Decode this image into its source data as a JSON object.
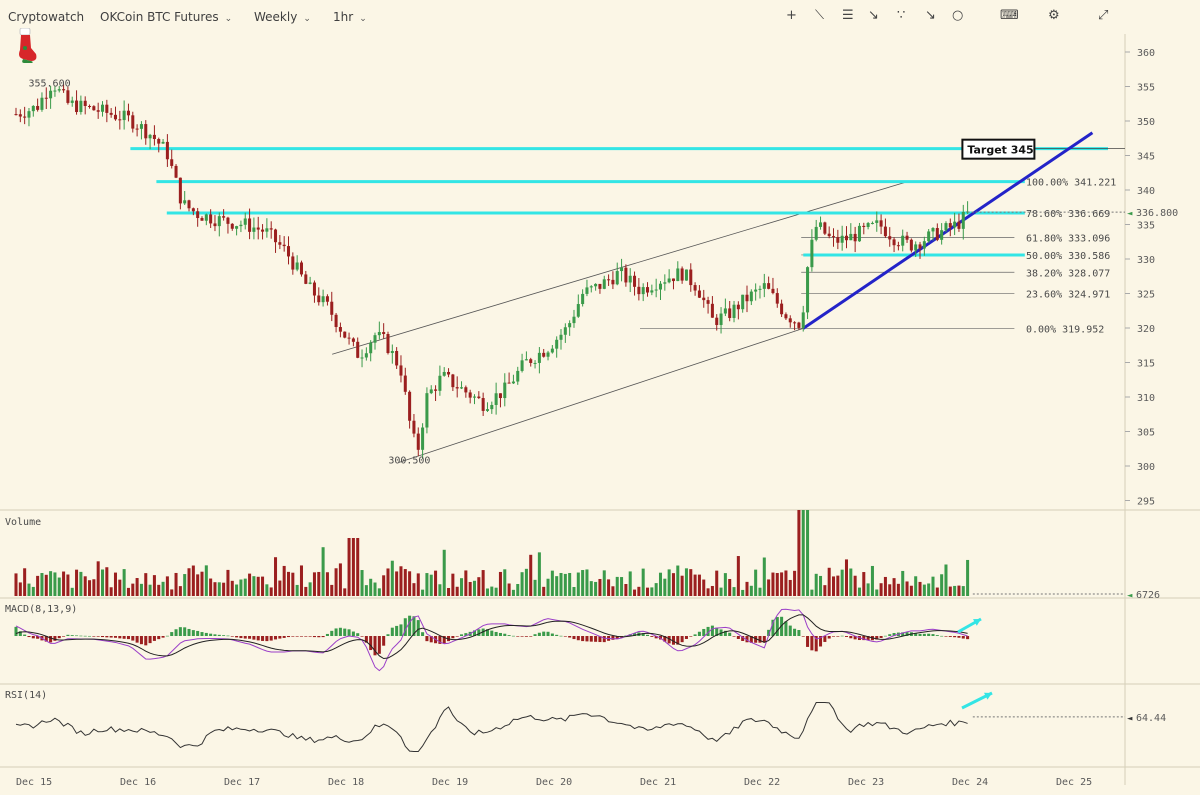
{
  "toolbar": {
    "brand": "Cryptowatch",
    "market": "OKCoin BTC Futures",
    "period": "Weekly",
    "interval": "1hr",
    "icons": [
      "plus-icon",
      "line-tool-icon",
      "hlines-icon",
      "fan-tool-icon",
      "fib-tool-icon",
      "arrow-tool-icon",
      "circle-tool-icon",
      "keyboard-icon",
      "gear-icon",
      "expand-icon"
    ]
  },
  "colors": {
    "background": "#fbf6e6",
    "up": "#3a9a4a",
    "down": "#9b1f1f",
    "cyan": "#33e5e5",
    "trend": "#2323c8",
    "macd_line": "#222222",
    "signal_line": "#9b3fc8"
  },
  "chart_data": {
    "type": "candlestick",
    "title": "",
    "price_axis": {
      "ticks": [
        360,
        355,
        350,
        345,
        340,
        335,
        330,
        325,
        320,
        315,
        310,
        305,
        300,
        295
      ],
      "range": [
        293,
        362
      ]
    },
    "time_axis": {
      "labels": [
        "Dec 15",
        "Dec 16",
        "Dec 17",
        "Dec 18",
        "Dec 19",
        "Dec 20",
        "Dec 21",
        "Dec 22",
        "Dec 23",
        "Dec 24",
        "Dec 25"
      ],
      "range": [
        0,
        10.5
      ]
    },
    "current_price": "336.800",
    "annotations": {
      "high_label": "355.600",
      "low_label": "300.500",
      "target": "Target 345",
      "horizontal_levels": [
        346,
        341.221,
        336.669,
        330.586
      ],
      "fib_levels": [
        {
          "pct": "100.00%",
          "value": "341.221"
        },
        {
          "pct": "78.60%",
          "value": "336.669"
        },
        {
          "pct": "61.80%",
          "value": "333.096"
        },
        {
          "pct": "50.00%",
          "value": "330.586"
        },
        {
          "pct": "38.20%",
          "value": "328.077"
        },
        {
          "pct": "23.60%",
          "value": "324.971"
        },
        {
          "pct": "0.00%",
          "value": "319.952"
        }
      ]
    },
    "price_anchors": [
      [
        0,
        351
      ],
      [
        0.2,
        352
      ],
      [
        0.3,
        354.5
      ],
      [
        0.35,
        355.6
      ],
      [
        0.5,
        352.5
      ],
      [
        0.8,
        351.5
      ],
      [
        1.1,
        350.2
      ],
      [
        1.3,
        348
      ],
      [
        1.45,
        345.5
      ],
      [
        1.6,
        338
      ],
      [
        1.75,
        336.5
      ],
      [
        2.0,
        335.5
      ],
      [
        2.2,
        335
      ],
      [
        2.4,
        334
      ],
      [
        2.6,
        331
      ],
      [
        2.8,
        326
      ],
      [
        3.0,
        323
      ],
      [
        3.2,
        318
      ],
      [
        3.3,
        316
      ],
      [
        3.45,
        319
      ],
      [
        3.55,
        318
      ],
      [
        3.7,
        314
      ],
      [
        3.8,
        305
      ],
      [
        3.86,
        302
      ],
      [
        3.95,
        310
      ],
      [
        4.1,
        313
      ],
      [
        4.3,
        311
      ],
      [
        4.5,
        309
      ],
      [
        4.7,
        311
      ],
      [
        4.9,
        315
      ],
      [
        5.1,
        317
      ],
      [
        5.3,
        320
      ],
      [
        5.45,
        325
      ],
      [
        5.6,
        326
      ],
      [
        5.8,
        328
      ],
      [
        6.0,
        325.5
      ],
      [
        6.2,
        327
      ],
      [
        6.4,
        328
      ],
      [
        6.55,
        326
      ],
      [
        6.7,
        321
      ],
      [
        6.85,
        322
      ],
      [
        7.0,
        324
      ],
      [
        7.2,
        326
      ],
      [
        7.4,
        322
      ],
      [
        7.55,
        320.5
      ],
      [
        7.62,
        330
      ],
      [
        7.7,
        335
      ],
      [
        7.85,
        332.5
      ],
      [
        8.0,
        333
      ],
      [
        8.15,
        334
      ],
      [
        8.3,
        335
      ],
      [
        8.45,
        333
      ],
      [
        8.6,
        332
      ],
      [
        8.75,
        333
      ],
      [
        8.9,
        334
      ],
      [
        9.05,
        335
      ],
      [
        9.15,
        336.5
      ]
    ],
    "volume": {
      "label": "Volume",
      "last": "6726"
    },
    "macd": {
      "label": "MACD(8,13,9)"
    },
    "rsi": {
      "label": "RSI(14)",
      "last": "64.44"
    }
  }
}
